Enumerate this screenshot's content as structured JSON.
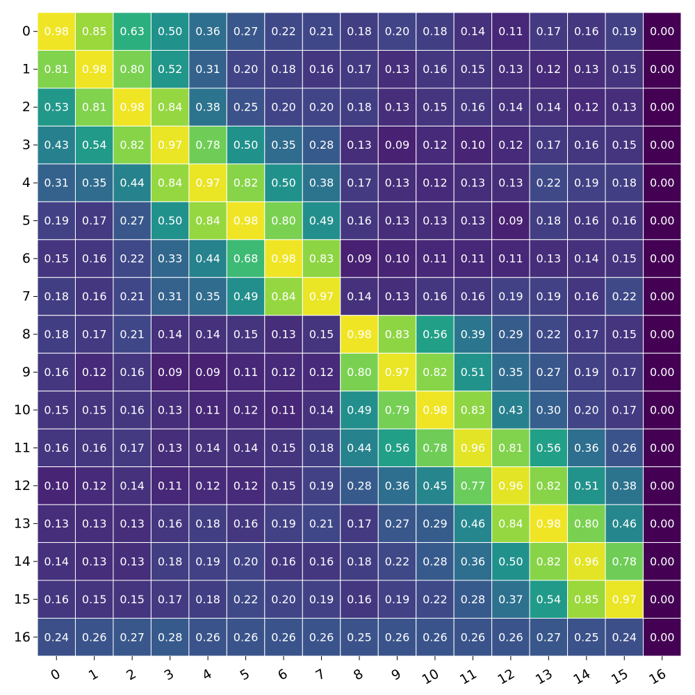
{
  "chart_data": {
    "type": "heatmap",
    "title": "",
    "xlabel": "",
    "ylabel": "",
    "colormap": "viridis",
    "value_range": [
      0,
      1
    ],
    "x_categories": [
      "0",
      "1",
      "2",
      "3",
      "4",
      "5",
      "6",
      "7",
      "8",
      "9",
      "10",
      "11",
      "12",
      "13",
      "14",
      "15",
      "16"
    ],
    "y_categories": [
      "0",
      "1",
      "2",
      "3",
      "4",
      "5",
      "6",
      "7",
      "8",
      "9",
      "10",
      "11",
      "12",
      "13",
      "14",
      "15",
      "16"
    ],
    "values": [
      [
        0.98,
        0.85,
        0.63,
        0.5,
        0.36,
        0.27,
        0.22,
        0.21,
        0.18,
        0.2,
        0.18,
        0.14,
        0.11,
        0.17,
        0.16,
        0.19,
        0.0
      ],
      [
        0.81,
        0.98,
        0.8,
        0.52,
        0.31,
        0.2,
        0.18,
        0.16,
        0.17,
        0.13,
        0.16,
        0.15,
        0.13,
        0.12,
        0.13,
        0.15,
        0.0
      ],
      [
        0.53,
        0.81,
        0.98,
        0.84,
        0.38,
        0.25,
        0.2,
        0.2,
        0.18,
        0.13,
        0.15,
        0.16,
        0.14,
        0.14,
        0.12,
        0.13,
        0.0
      ],
      [
        0.43,
        0.54,
        0.82,
        0.97,
        0.78,
        0.5,
        0.35,
        0.28,
        0.13,
        0.09,
        0.12,
        0.1,
        0.12,
        0.17,
        0.16,
        0.15,
        0.0
      ],
      [
        0.31,
        0.35,
        0.44,
        0.84,
        0.97,
        0.82,
        0.5,
        0.38,
        0.17,
        0.13,
        0.12,
        0.13,
        0.13,
        0.22,
        0.19,
        0.18,
        0.0
      ],
      [
        0.19,
        0.17,
        0.27,
        0.5,
        0.84,
        0.98,
        0.8,
        0.49,
        0.16,
        0.13,
        0.13,
        0.13,
        0.09,
        0.18,
        0.16,
        0.16,
        0.0
      ],
      [
        0.15,
        0.16,
        0.22,
        0.33,
        0.44,
        0.68,
        0.98,
        0.83,
        0.09,
        0.1,
        0.11,
        0.11,
        0.11,
        0.13,
        0.14,
        0.15,
        0.0
      ],
      [
        0.18,
        0.16,
        0.21,
        0.31,
        0.35,
        0.49,
        0.84,
        0.97,
        0.14,
        0.13,
        0.16,
        0.16,
        0.19,
        0.19,
        0.16,
        0.22,
        0.0
      ],
      [
        0.18,
        0.17,
        0.21,
        0.14,
        0.14,
        0.15,
        0.13,
        0.15,
        0.98,
        0.83,
        0.56,
        0.39,
        0.29,
        0.22,
        0.17,
        0.15,
        0.0
      ],
      [
        0.16,
        0.12,
        0.16,
        0.09,
        0.09,
        0.11,
        0.12,
        0.12,
        0.8,
        0.97,
        0.82,
        0.51,
        0.35,
        0.27,
        0.19,
        0.17,
        0.0
      ],
      [
        0.15,
        0.15,
        0.16,
        0.13,
        0.11,
        0.12,
        0.11,
        0.14,
        0.49,
        0.79,
        0.98,
        0.83,
        0.43,
        0.3,
        0.2,
        0.17,
        0.0
      ],
      [
        0.16,
        0.16,
        0.17,
        0.13,
        0.14,
        0.14,
        0.15,
        0.18,
        0.44,
        0.56,
        0.78,
        0.96,
        0.81,
        0.56,
        0.36,
        0.26,
        0.0
      ],
      [
        0.1,
        0.12,
        0.14,
        0.11,
        0.12,
        0.12,
        0.15,
        0.19,
        0.28,
        0.36,
        0.45,
        0.77,
        0.96,
        0.82,
        0.51,
        0.38,
        0.0
      ],
      [
        0.13,
        0.13,
        0.13,
        0.16,
        0.18,
        0.16,
        0.19,
        0.21,
        0.17,
        0.27,
        0.29,
        0.46,
        0.84,
        0.98,
        0.8,
        0.46,
        0.0
      ],
      [
        0.14,
        0.13,
        0.13,
        0.18,
        0.19,
        0.2,
        0.16,
        0.16,
        0.18,
        0.22,
        0.28,
        0.36,
        0.5,
        0.82,
        0.96,
        0.78,
        0.0
      ],
      [
        0.16,
        0.15,
        0.15,
        0.17,
        0.18,
        0.22,
        0.2,
        0.19,
        0.16,
        0.19,
        0.22,
        0.28,
        0.37,
        0.54,
        0.85,
        0.97,
        0.0
      ],
      [
        0.24,
        0.26,
        0.27,
        0.28,
        0.26,
        0.26,
        0.26,
        0.26,
        0.25,
        0.26,
        0.26,
        0.26,
        0.26,
        0.27,
        0.25,
        0.24,
        0.0
      ]
    ],
    "annotations": true,
    "annotation_format": "0.00",
    "annotation_color": "#ffffff",
    "cell_border_color": "#ffffff",
    "x_tick_rotation": "tilted",
    "grid": false,
    "legend": "none"
  }
}
